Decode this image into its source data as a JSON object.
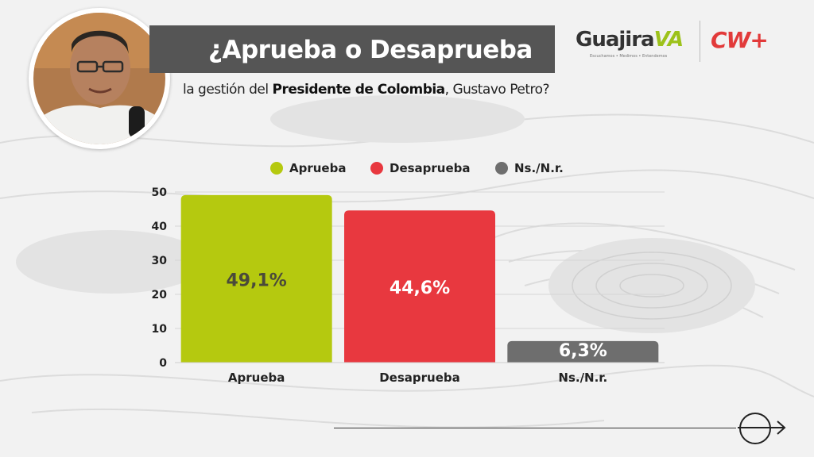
{
  "header": {
    "title": "¿Aprueba o Desaprueba",
    "subtitle_pre": "la gestión del ",
    "subtitle_bold": "Presidente de Colombia",
    "subtitle_post": ", Gustavo Petro?"
  },
  "brand": {
    "guajira_main": "Guajira",
    "guajira_va": "VA",
    "guajira_tagline": "Escuchamos • Medimos • Entendemos",
    "cw": "CW+"
  },
  "icons": {
    "next": "arrow-right-circle-icon"
  },
  "chart_data": {
    "type": "bar",
    "categories": [
      "Aprueba",
      "Desaprueba",
      "Ns./N.r."
    ],
    "values": [
      49.1,
      44.6,
      6.3
    ],
    "value_labels": [
      "49,1%",
      "44,6%",
      "6,3%"
    ],
    "colors": [
      "#b5c90f",
      "#e8383f",
      "#6e6e6e"
    ],
    "label_colors": [
      "#4a4a3a",
      "#ffffff",
      "#ffffff"
    ],
    "yticks": [
      0,
      10,
      20,
      30,
      40,
      50
    ],
    "ylim": [
      0,
      50
    ],
    "grid": true,
    "legend": {
      "position": "top",
      "items": [
        {
          "label": "Aprueba",
          "color": "#b5c90f"
        },
        {
          "label": "Desaprueba",
          "color": "#e8383f"
        },
        {
          "label": "Ns./N.r.",
          "color": "#6e6e6e"
        }
      ]
    }
  }
}
